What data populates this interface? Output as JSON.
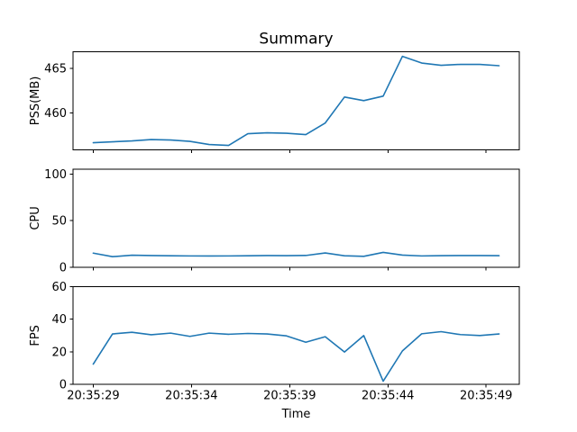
{
  "chart_data": {
    "type": "line",
    "title": "Summary",
    "xlabel": "Time",
    "background": "#ffffff",
    "line_color": "#1f77b4",
    "axis_color": "#000000",
    "grid": false,
    "legend": "none",
    "x_start_time": "20:35:29",
    "x_seconds": [
      0,
      0.98,
      1.97,
      2.95,
      3.94,
      4.92,
      5.9,
      6.89,
      7.87,
      8.85,
      9.84,
      10.82,
      11.81,
      12.79,
      13.77,
      14.76,
      15.74,
      16.72,
      17.71,
      18.69,
      19.68,
      20.66
    ],
    "xlim_seconds": [
      -1.03,
      21.69
    ],
    "xticks": [
      {
        "t": 0,
        "label": "20:35:29"
      },
      {
        "t": 5,
        "label": "20:35:34"
      },
      {
        "t": 10,
        "label": "20:35:39"
      },
      {
        "t": 15,
        "label": "20:35:44"
      },
      {
        "t": 20,
        "label": "20:35:49"
      }
    ],
    "subplots": [
      {
        "name": "pss",
        "ylabel": "PSS(MB)",
        "ylim": [
          455.92,
          466.85
        ],
        "yticks": [
          460,
          465
        ],
        "values": [
          456.7,
          456.8,
          456.9,
          457.05,
          457.0,
          456.85,
          456.5,
          456.4,
          457.7,
          457.8,
          457.75,
          457.6,
          458.9,
          461.8,
          461.4,
          461.9,
          466.35,
          465.6,
          465.35,
          465.45,
          465.45,
          465.3
        ]
      },
      {
        "name": "cpu",
        "ylabel": "CPU",
        "ylim": [
          0,
          105
        ],
        "yticks": [
          0,
          50,
          100
        ],
        "values": [
          15.0,
          11.2,
          12.8,
          12.4,
          12.2,
          12.0,
          11.9,
          12.0,
          12.2,
          12.4,
          12.3,
          12.5,
          15.2,
          12.2,
          11.6,
          15.8,
          12.9,
          12.0,
          12.3,
          12.4,
          12.4,
          12.3
        ]
      },
      {
        "name": "fps",
        "ylabel": "FPS",
        "ylim": [
          0,
          60
        ],
        "yticks": [
          0,
          20,
          40,
          60
        ],
        "values": [
          12.5,
          31.0,
          32.0,
          30.5,
          31.5,
          29.5,
          31.5,
          30.8,
          31.3,
          31.0,
          29.8,
          25.9,
          29.3,
          19.9,
          30.0,
          2.0,
          20.6,
          31.1,
          32.4,
          30.6,
          30.0,
          31.0
        ]
      }
    ]
  }
}
